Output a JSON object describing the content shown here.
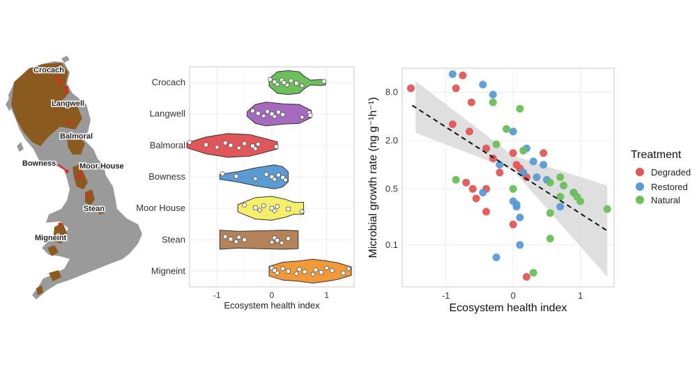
{
  "colors": {
    "land": "#9a9a9a",
    "upland": "#8b5a1e",
    "site_marker": "#e8202a",
    "degraded": "#e15759",
    "restored": "#5a9bd4",
    "natural": "#6cbf5a",
    "ribbon": "#d9d9d9",
    "grid": "#ebebeb",
    "axis_frame": "#c8c8c8"
  },
  "map": {
    "sites": [
      "Crocach",
      "Langwell",
      "Balmoral",
      "Bowness",
      "Moor House",
      "Stean",
      "Migneint"
    ]
  },
  "chart_data": [
    {
      "type": "violin",
      "xlabel": "Ecosystem health index",
      "ylabel": "",
      "xlim": [
        -1.5,
        1.5
      ],
      "xticks": [
        -1,
        0,
        1
      ],
      "grid": true,
      "categories": [
        {
          "name": "Crocach",
          "color": "#6cbf5a",
          "range": [
            -0.05,
            0.98
          ],
          "points": [
            -0.03,
            0.05,
            0.1,
            0.18,
            0.22,
            0.28,
            0.35,
            0.45,
            0.55,
            0.95
          ],
          "shape": [
            [
              -0.05,
              0.3
            ],
            [
              0.1,
              0.9
            ],
            [
              0.3,
              1.0
            ],
            [
              0.5,
              0.9
            ],
            [
              0.6,
              0.5
            ],
            [
              0.7,
              0.2
            ],
            [
              0.9,
              0.25
            ],
            [
              0.98,
              0.2
            ]
          ]
        },
        {
          "name": "Langwell",
          "color": "#a569bd",
          "range": [
            -0.45,
            0.72
          ],
          "points": [
            -0.35,
            -0.25,
            -0.15,
            -0.08,
            0.0,
            0.05,
            0.12,
            0.2,
            0.55,
            0.68,
            0.7
          ],
          "shape": [
            [
              -0.45,
              0.2
            ],
            [
              -0.3,
              0.8
            ],
            [
              -0.1,
              1.0
            ],
            [
              0.2,
              0.85
            ],
            [
              0.5,
              0.8
            ],
            [
              0.72,
              0.3
            ]
          ]
        },
        {
          "name": "Balmoral",
          "color": "#e15759",
          "range": [
            -1.55,
            0.1
          ],
          "points": [
            -1.5,
            -1.2,
            -1.0,
            -0.85,
            -0.75,
            -0.6,
            -0.5,
            -0.35,
            -0.3,
            -0.25,
            0.08
          ],
          "shape": [
            [
              -1.55,
              0.2
            ],
            [
              -1.2,
              0.7
            ],
            [
              -0.8,
              1.0
            ],
            [
              -0.4,
              0.9
            ],
            [
              -0.1,
              0.55
            ],
            [
              0.1,
              0.3
            ]
          ]
        },
        {
          "name": "Bowness",
          "color": "#5a9bd4",
          "range": [
            -0.95,
            0.3
          ],
          "points": [
            -0.9,
            -0.65,
            -0.3,
            -0.1,
            0.0,
            0.05,
            0.12,
            0.2,
            0.25
          ],
          "shape": [
            [
              -0.95,
              0.2
            ],
            [
              -0.6,
              0.45
            ],
            [
              -0.3,
              0.75
            ],
            [
              0.05,
              1.0
            ],
            [
              0.2,
              0.85
            ],
            [
              0.3,
              0.4
            ]
          ]
        },
        {
          "name": "Moor House",
          "color": "#f5ee6a",
          "range": [
            -0.62,
            0.58
          ],
          "points": [
            -0.5,
            -0.3,
            -0.22,
            -0.15,
            0.0,
            0.05,
            0.1,
            0.3,
            0.55
          ],
          "shape": [
            [
              -0.62,
              0.3
            ],
            [
              -0.3,
              0.9
            ],
            [
              0.0,
              1.0
            ],
            [
              0.25,
              0.75
            ],
            [
              0.4,
              0.5
            ],
            [
              0.58,
              0.5
            ]
          ]
        },
        {
          "name": "Stean",
          "color": "#b5835a",
          "range": [
            -0.95,
            0.48
          ],
          "points": [
            -0.85,
            -0.75,
            -0.65,
            -0.6,
            -0.5,
            0.0,
            0.05,
            0.1,
            0.18,
            0.3
          ],
          "shape": [
            [
              -0.95,
              0.8
            ],
            [
              -0.6,
              0.7
            ],
            [
              -0.2,
              0.75
            ],
            [
              0.2,
              0.8
            ],
            [
              0.48,
              0.75
            ]
          ]
        },
        {
          "name": "Migneint",
          "color": "#f29a3a",
          "range": [
            -0.05,
            1.45
          ],
          "points": [
            0.0,
            0.05,
            0.1,
            0.2,
            0.3,
            0.45,
            0.5,
            0.6,
            0.75,
            0.8,
            0.9,
            1.0,
            1.1,
            1.3,
            1.4
          ],
          "shape": [
            [
              -0.05,
              0.4
            ],
            [
              0.2,
              0.75
            ],
            [
              0.5,
              0.85
            ],
            [
              0.75,
              1.0
            ],
            [
              1.0,
              0.85
            ],
            [
              1.2,
              0.7
            ],
            [
              1.45,
              0.35
            ]
          ]
        }
      ]
    },
    {
      "type": "scatter",
      "title": "",
      "xlabel": "Ecosystem health index",
      "ylabel": "Microbial growth rate (ng g⁻¹h⁻¹)",
      "xlim": [
        -1.65,
        1.5
      ],
      "ylim": [
        0.03,
        16
      ],
      "yscale": "log",
      "xticks": [
        -1,
        0,
        1
      ],
      "yticks": [
        0.1,
        0.5,
        2.0,
        8.0
      ],
      "ytick_labels": [
        "0.1",
        "0.5",
        "2.0",
        "8.0"
      ],
      "grid": true,
      "legend": {
        "title": "Treatment",
        "position": "right",
        "entries": [
          "Degraded",
          "Restored",
          "Natural"
        ]
      },
      "trend": {
        "style": "dashed",
        "x": [
          -1.5,
          1.4
        ],
        "y": [
          5.5,
          0.15
        ],
        "ribbon": {
          "x": [
            -1.45,
            0.0,
            1.4
          ],
          "lower": [
            2.5,
            0.85,
            0.04
          ],
          "upper": [
            11.0,
            1.3,
            0.55
          ]
        }
      },
      "series": [
        {
          "name": "Degraded",
          "x": [
            -1.52,
            -0.9,
            -0.85,
            -0.75,
            -0.62,
            -0.65,
            -0.4,
            -0.7,
            -0.6,
            -0.55,
            -0.4,
            -0.4,
            -0.3,
            0.0,
            0.05,
            0.1,
            0.15,
            -0.2,
            0.2,
            0.45,
            0.2,
            0.0
          ],
          "y": [
            9.0,
            3.2,
            9.0,
            13.0,
            6.0,
            2.6,
            1.6,
            0.6,
            0.5,
            0.38,
            0.5,
            0.26,
            1.2,
            1.4,
            1.0,
            0.9,
            0.8,
            0.8,
            0.7,
            1.4,
            0.04,
            0.18
          ]
        },
        {
          "name": "Restored",
          "x": [
            -0.9,
            -0.45,
            -0.3,
            -0.45,
            0.0,
            0.2,
            0.3,
            0.45,
            -0.2,
            0.15,
            0.35,
            0.5,
            0.0,
            0.05,
            0.1,
            0.7,
            0.9,
            -0.25,
            0.05,
            0.1
          ],
          "y": [
            13.5,
            10.0,
            7.5,
            0.45,
            2.6,
            1.6,
            1.1,
            1.0,
            1.0,
            0.8,
            0.7,
            0.65,
            0.35,
            0.32,
            0.22,
            0.3,
            0.45,
            0.07,
            0.3,
            0.1
          ]
        },
        {
          "name": "Natural",
          "x": [
            -0.85,
            -0.3,
            -0.1,
            0.1,
            -0.25,
            0.15,
            0.0,
            0.55,
            0.7,
            0.75,
            0.9,
            0.95,
            1.0,
            1.4,
            0.55,
            0.7,
            0.55,
            0.3
          ],
          "y": [
            0.65,
            6.0,
            2.8,
            5.0,
            1.8,
            1.5,
            0.5,
            0.6,
            0.7,
            0.55,
            0.45,
            0.4,
            0.35,
            0.28,
            0.25,
            0.4,
            0.12,
            0.045
          ]
        }
      ]
    }
  ]
}
